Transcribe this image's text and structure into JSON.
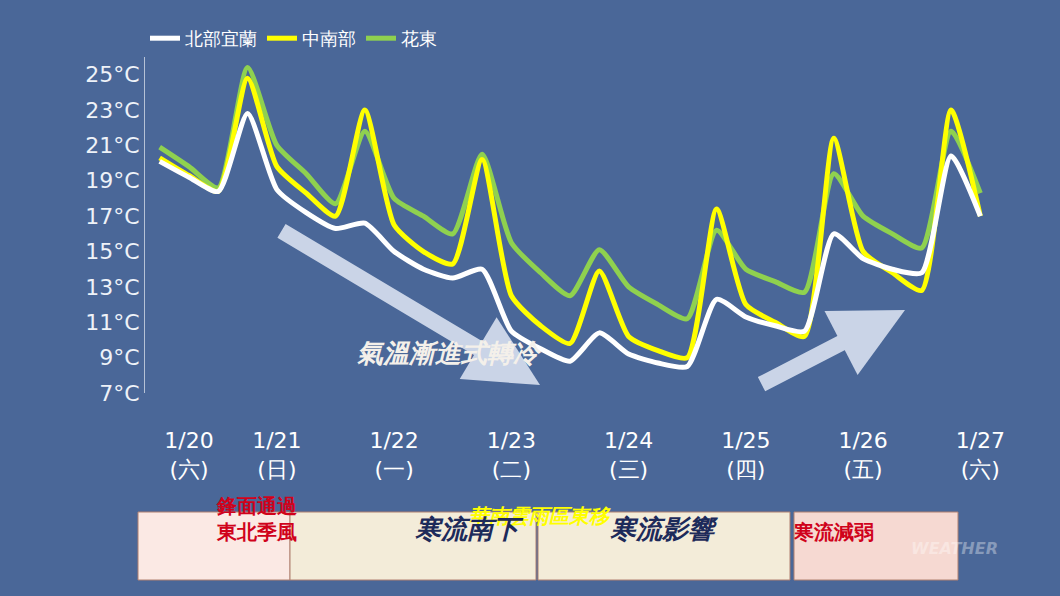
{
  "chart_data": {
    "type": "line",
    "categories": [
      null,
      "1/20\n(六)",
      null,
      null,
      "1/21\n(日)",
      null,
      null,
      null,
      "1/22\n(一)",
      null,
      null,
      null,
      "1/23\n(二)",
      null,
      null,
      null,
      "1/24\n(三)",
      null,
      null,
      null,
      "1/25\n(四)",
      null,
      null,
      null,
      "1/26\n(五)",
      null,
      null,
      null,
      "1/27\n(六)"
    ],
    "series": [
      {
        "name": "北部宜蘭",
        "color": "#ffffff",
        "values": [
          20.1,
          19.2,
          18.4,
          22.8,
          18.5,
          17.2,
          16.3,
          16.6,
          15.0,
          14.0,
          13.5,
          14.0,
          10.5,
          9.5,
          8.8,
          10.4,
          9.2,
          8.7,
          8.5,
          12.3,
          11.3,
          10.8,
          10.5,
          16.0,
          14.6,
          14.0,
          13.8,
          20.4,
          17.0
        ]
      },
      {
        "name": "中南部",
        "color": "#ffff00",
        "values": [
          20.3,
          19.3,
          18.4,
          24.8,
          19.8,
          18.3,
          17.0,
          23.0,
          16.5,
          15.0,
          14.3,
          20.2,
          12.5,
          10.8,
          9.8,
          13.9,
          10.2,
          9.4,
          9.0,
          17.4,
          12.0,
          11.0,
          10.2,
          21.4,
          15.0,
          13.8,
          12.8,
          23.0,
          17.0
        ]
      },
      {
        "name": "花東",
        "color": "#8fd14f",
        "values": [
          20.9,
          19.8,
          18.6,
          25.4,
          21.0,
          19.4,
          17.7,
          21.8,
          18.0,
          17.0,
          16.0,
          20.5,
          15.5,
          13.8,
          12.5,
          15.1,
          13.0,
          12.0,
          11.2,
          16.2,
          14.0,
          13.3,
          12.7,
          19.4,
          17.0,
          16.0,
          15.2,
          21.8,
          18.3
        ]
      }
    ],
    "ylim": [
      7,
      26
    ],
    "yticks": [
      {
        "value": 7,
        "label": "7°C"
      },
      {
        "value": 9,
        "label": "9°C"
      },
      {
        "value": 11,
        "label": "11°C"
      },
      {
        "value": 13,
        "label": "13°C"
      },
      {
        "value": 15,
        "label": "15°C"
      },
      {
        "value": 17,
        "label": "17°C"
      },
      {
        "value": 19,
        "label": "19°C"
      },
      {
        "value": 21,
        "label": "21°C"
      },
      {
        "value": 23,
        "label": "23°C"
      },
      {
        "value": 25,
        "label": "25°C"
      }
    ],
    "grid": false,
    "legend": "top left",
    "annotations": [
      "氣溫漸進式轉冷",
      "華南雲雨區東移"
    ],
    "phases": [
      "鋒面通過\n東北季風",
      "寒流南下",
      "寒流影響",
      "寒流減弱"
    ],
    "watermark": "WEATHER"
  }
}
